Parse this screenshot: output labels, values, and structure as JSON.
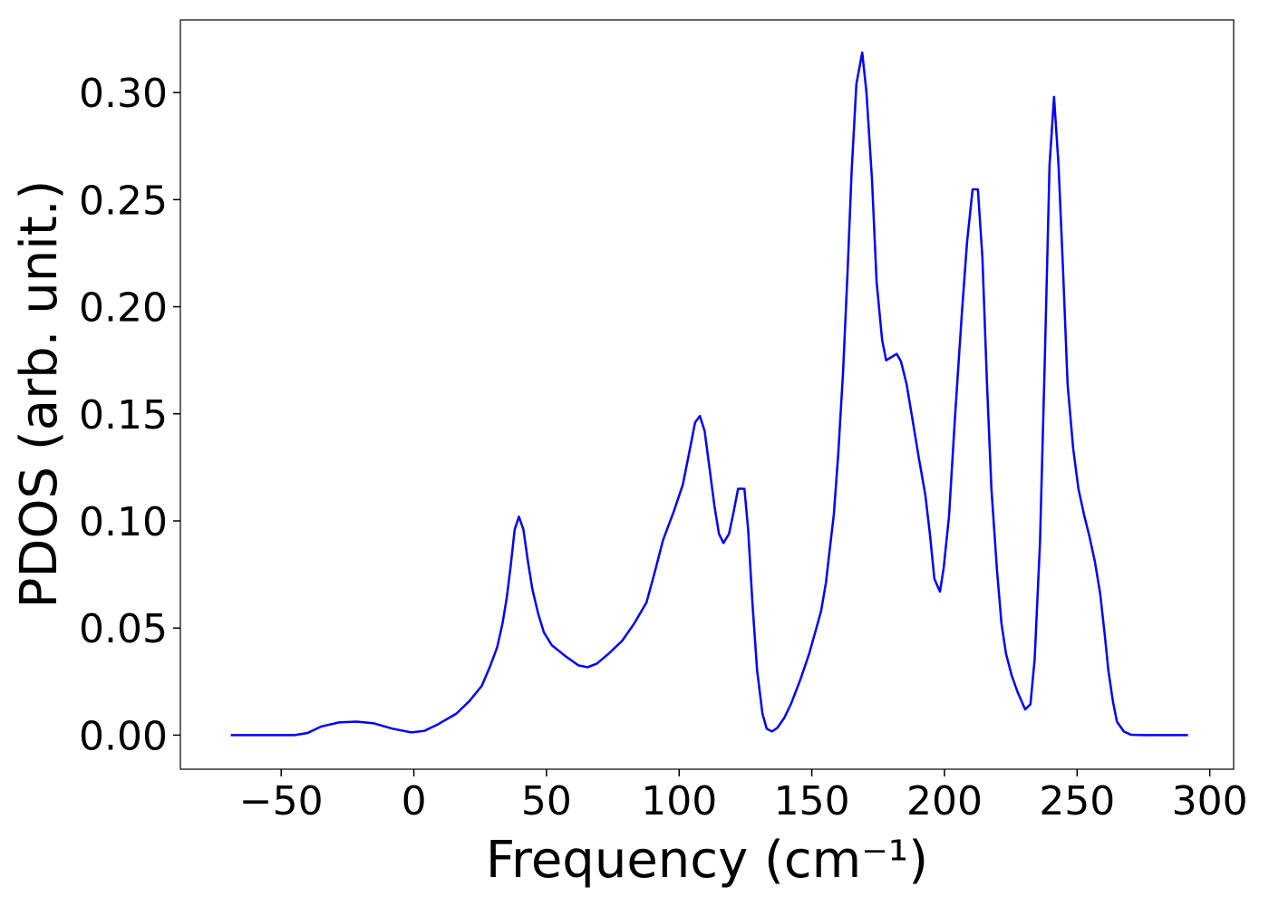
{
  "chart_data": {
    "type": "line",
    "xlabel": "Frequency (cm⁻¹)",
    "ylabel": "PDOS (arb. unit.)",
    "color": "#0000ff",
    "xlim": [
      -88,
      309
    ],
    "ylim": [
      -0.0159,
      0.3339
    ],
    "xticks": [
      {
        "value": -50,
        "label": "−50"
      },
      0,
      50,
      100,
      150,
      200,
      250,
      300
    ],
    "yticks": [
      {
        "value": 0,
        "label": "0.00"
      },
      {
        "value": 0.05,
        "label": "0.05"
      },
      {
        "value": 0.1,
        "label": "0.10"
      },
      {
        "value": 0.15,
        "label": "0.15"
      },
      {
        "value": 0.2,
        "label": "0.20"
      },
      {
        "value": 0.25,
        "label": "0.25"
      },
      {
        "value": 0.3,
        "label": "0.30"
      }
    ],
    "x": [
      -69,
      -45,
      -40,
      -35,
      -28,
      -21.5,
      -15,
      -8,
      -1,
      4,
      9,
      16,
      21,
      25.6,
      28.7,
      31.4,
      33.4,
      35,
      36.5,
      38,
      39.6,
      41.3,
      43,
      44.7,
      46.8,
      49,
      52,
      57,
      62,
      65.5,
      69,
      73.4,
      78.5,
      83,
      87.7,
      91,
      93.9,
      98,
      101.4,
      103.8,
      106,
      107.8,
      109.6,
      111.3,
      113.3,
      115,
      116.7,
      118.8,
      120.5,
      122.2,
      124.6,
      126,
      127.6,
      129.4,
      131.4,
      133,
      135,
      137,
      139.6,
      142.3,
      145.7,
      149,
      151.5,
      153.5,
      155.3,
      156.6,
      158.3,
      160,
      161.8,
      163.5,
      165,
      166.8,
      169,
      170.6,
      172.7,
      174.4,
      176.5,
      178,
      182,
      183.6,
      185.7,
      188,
      190.4,
      192.8,
      194.5,
      196.2,
      198.3,
      199.7,
      201.7,
      204,
      206.5,
      208.5,
      210.6,
      212.6,
      214.3,
      216,
      217.7,
      219.8,
      221.5,
      223.2,
      225.3,
      227.6,
      230.4,
      232.4,
      234,
      236,
      237.8,
      239.6,
      241.3,
      243,
      244.7,
      246.4,
      248.5,
      250.5,
      252.6,
      254.6,
      256.7,
      258.7,
      260.4,
      261.8,
      263.5,
      265,
      267.6,
      270.3,
      275.4,
      291.8
    ],
    "values": [
      0,
      0,
      0.001,
      0.004,
      0.006,
      0.0063,
      0.0055,
      0.003,
      0.0013,
      0.002,
      0.005,
      0.01,
      0.016,
      0.023,
      0.032,
      0.041,
      0.052,
      0.064,
      0.079,
      0.096,
      0.102,
      0.096,
      0.081,
      0.068,
      0.057,
      0.048,
      0.042,
      0.037,
      0.0326,
      0.0317,
      0.0334,
      0.038,
      0.044,
      0.052,
      0.062,
      0.077,
      0.091,
      0.1045,
      0.117,
      0.132,
      0.146,
      0.149,
      0.142,
      0.126,
      0.107,
      0.094,
      0.0897,
      0.094,
      0.104,
      0.115,
      0.115,
      0.096,
      0.062,
      0.03,
      0.01,
      0.003,
      0.0017,
      0.0034,
      0.008,
      0.015,
      0.026,
      0.038,
      0.049,
      0.058,
      0.071,
      0.085,
      0.103,
      0.132,
      0.17,
      0.217,
      0.263,
      0.304,
      0.3187,
      0.3,
      0.259,
      0.212,
      0.1845,
      0.175,
      0.178,
      0.1745,
      0.164,
      0.147,
      0.129,
      0.112,
      0.094,
      0.073,
      0.067,
      0.078,
      0.102,
      0.149,
      0.196,
      0.23,
      0.2548,
      0.2548,
      0.223,
      0.165,
      0.115,
      0.077,
      0.052,
      0.038,
      0.028,
      0.02,
      0.012,
      0.0144,
      0.0355,
      0.0897,
      0.174,
      0.266,
      0.298,
      0.266,
      0.217,
      0.164,
      0.134,
      0.115,
      0.103,
      0.093,
      0.081,
      0.066,
      0.047,
      0.03,
      0.0157,
      0.0063,
      0.0017,
      0.0002,
      0,
      0
    ]
  }
}
